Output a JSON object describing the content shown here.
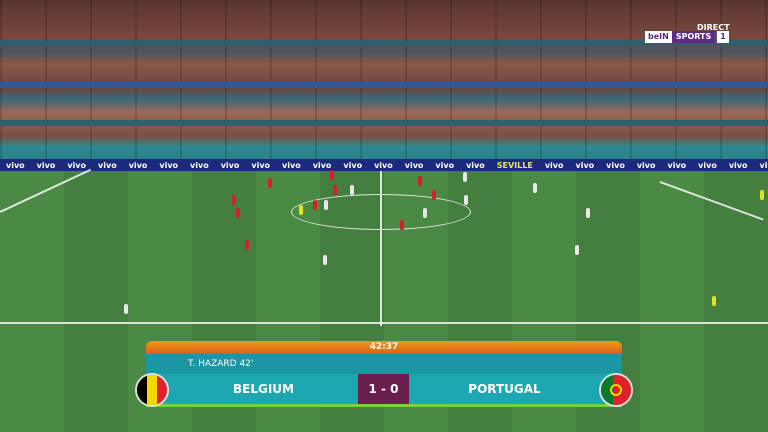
{
  "broadcaster": {
    "status": "DIRECT",
    "brand": "beIN",
    "channel_name": "SPORTS",
    "channel_number": "1"
  },
  "adboard": {
    "sponsor": "vivo",
    "venue": "SEVILLE"
  },
  "scoreboard": {
    "clock": "42:37",
    "scorer": "T. HAZARD 42'",
    "home_team": "BELGIUM",
    "away_team": "PORTUGAL",
    "score": "1 - 0",
    "colors": {
      "clock_bar": "#f29a1a",
      "panel": "#1ca7b3",
      "score_box": "#6a1e4e",
      "accent_line": "#7ad23a"
    }
  },
  "flags": {
    "home": "belgium-flag",
    "away": "portugal-flag"
  }
}
